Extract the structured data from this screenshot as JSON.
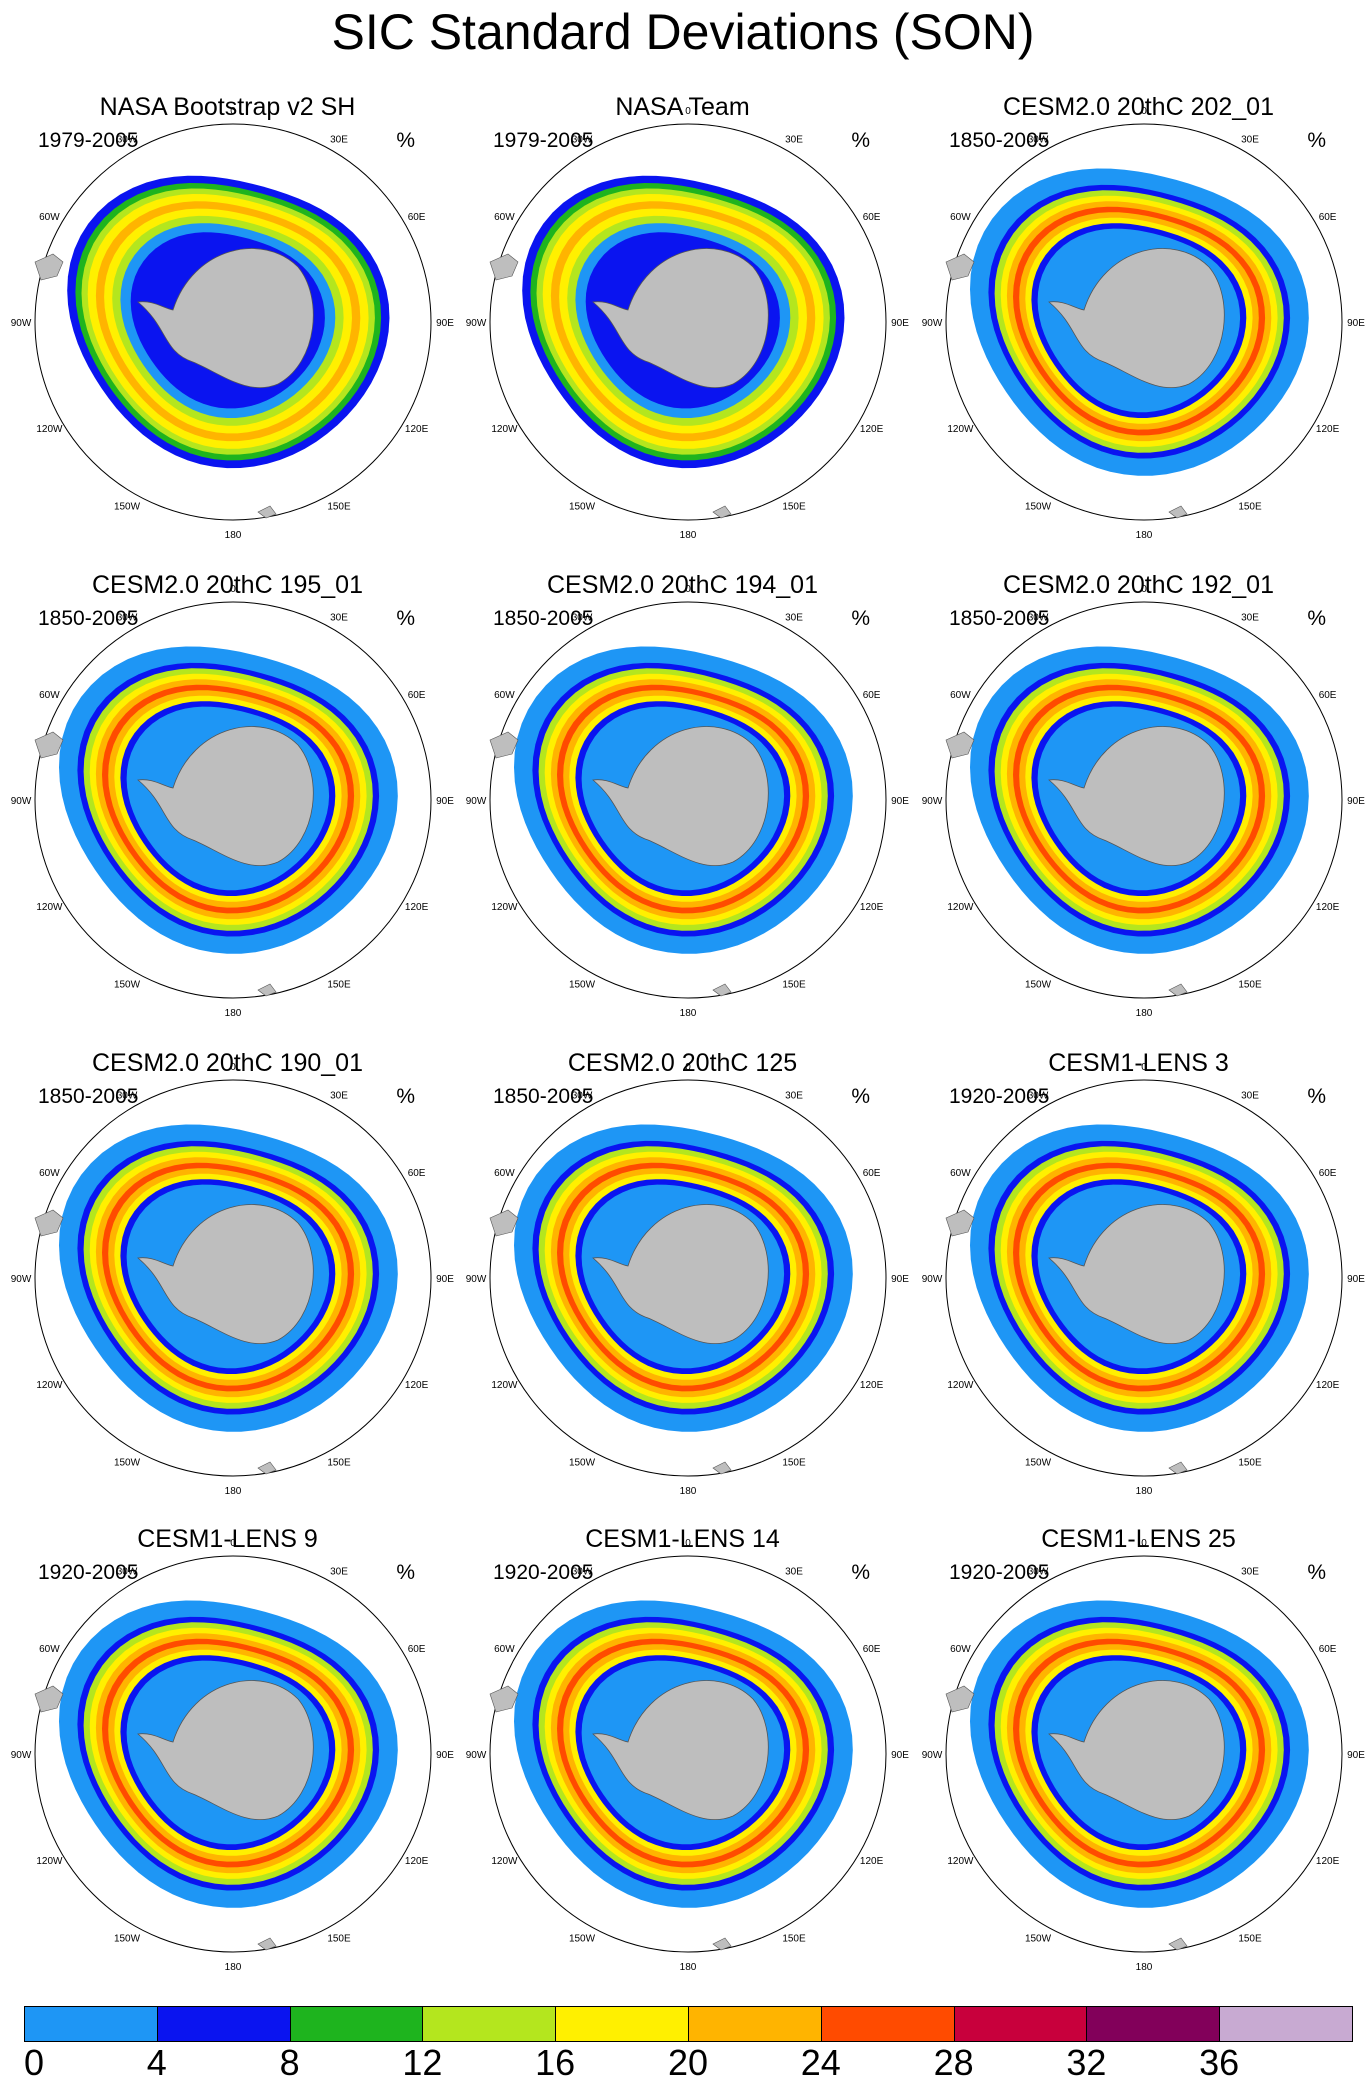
{
  "figure_title": "SIC Standard Deviations (SON)",
  "units": "%",
  "lon_labels": [
    "0",
    "30E",
    "60E",
    "90E",
    "120E",
    "150E",
    "180",
    "150W",
    "120W",
    "90W",
    "60W",
    "30W"
  ],
  "panels": [
    {
      "title": "NASA Bootstrap v2 SH",
      "period": "1979-2005",
      "style": "obs"
    },
    {
      "title": "NASA Team",
      "period": "1979-2005",
      "style": "obs"
    },
    {
      "title": "CESM2.0 20thC 202_01",
      "period": "1850-2005",
      "style": "model"
    },
    {
      "title": "CESM2.0 20thC 195_01",
      "period": "1850-2005",
      "style": "model"
    },
    {
      "title": "CESM2.0 20thC 194_01",
      "period": "1850-2005",
      "style": "model"
    },
    {
      "title": "CESM2.0 20thC 192_01",
      "period": "1850-2005",
      "style": "model"
    },
    {
      "title": "CESM2.0 20thC 190_01",
      "period": "1850-2005",
      "style": "model"
    },
    {
      "title": "CESM2.0 20thC 125",
      "period": "1850-2005",
      "style": "model"
    },
    {
      "title": "CESM1-LENS 3",
      "period": "1920-2005",
      "style": "model"
    },
    {
      "title": "CESM1-LENS 9",
      "period": "1920-2005",
      "style": "model"
    },
    {
      "title": "CESM1-LENS 14",
      "period": "1920-2005",
      "style": "model"
    },
    {
      "title": "CESM1-LENS 25",
      "period": "1920-2005",
      "style": "model"
    }
  ],
  "colorbar": {
    "labels": [
      "0",
      "4",
      "8",
      "12",
      "16",
      "20",
      "24",
      "28",
      "32",
      "36"
    ],
    "colors": [
      "#1e96f5",
      "#0a14f0",
      "#1eb41e",
      "#b4e61e",
      "#fff000",
      "#ffb400",
      "#ff4b00",
      "#c8003c",
      "#82005a",
      "#c8aad2"
    ]
  },
  "map_colors": {
    "land": "#bebebe",
    "ocean": "#ffffff",
    "outline": "#555555"
  }
}
